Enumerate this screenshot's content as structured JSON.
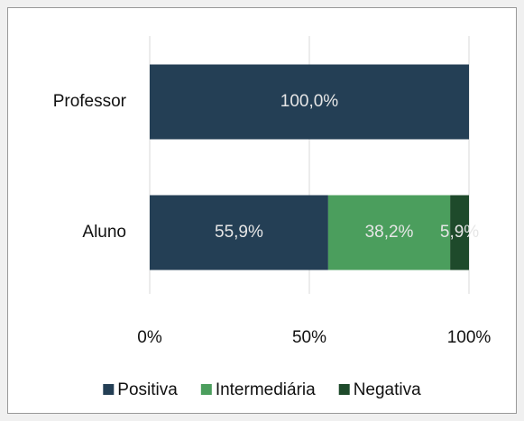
{
  "chart_data": {
    "type": "stacked-barh",
    "categories": [
      "Professor",
      "Aluno"
    ],
    "series": [
      {
        "name": "Positiva",
        "color": "#243f55",
        "values": [
          100,
          55.9
        ],
        "value_labels": [
          "100,0%",
          "55,9%"
        ]
      },
      {
        "name": "Intermediária",
        "color": "#4b9e5d",
        "values": [
          0,
          38.2
        ],
        "value_labels": [
          null,
          "38,2%"
        ]
      },
      {
        "name": "Negativa",
        "color": "#1e4a2b",
        "values": [
          0,
          5.9
        ],
        "value_labels": [
          null,
          "5,9%"
        ]
      }
    ],
    "xlim": [
      0,
      100
    ],
    "xticks": [
      {
        "value": 0,
        "label": "0%"
      },
      {
        "value": 50,
        "label": "50%"
      },
      {
        "value": 100,
        "label": "100%"
      }
    ],
    "grid": true,
    "legend": "bottom"
  }
}
